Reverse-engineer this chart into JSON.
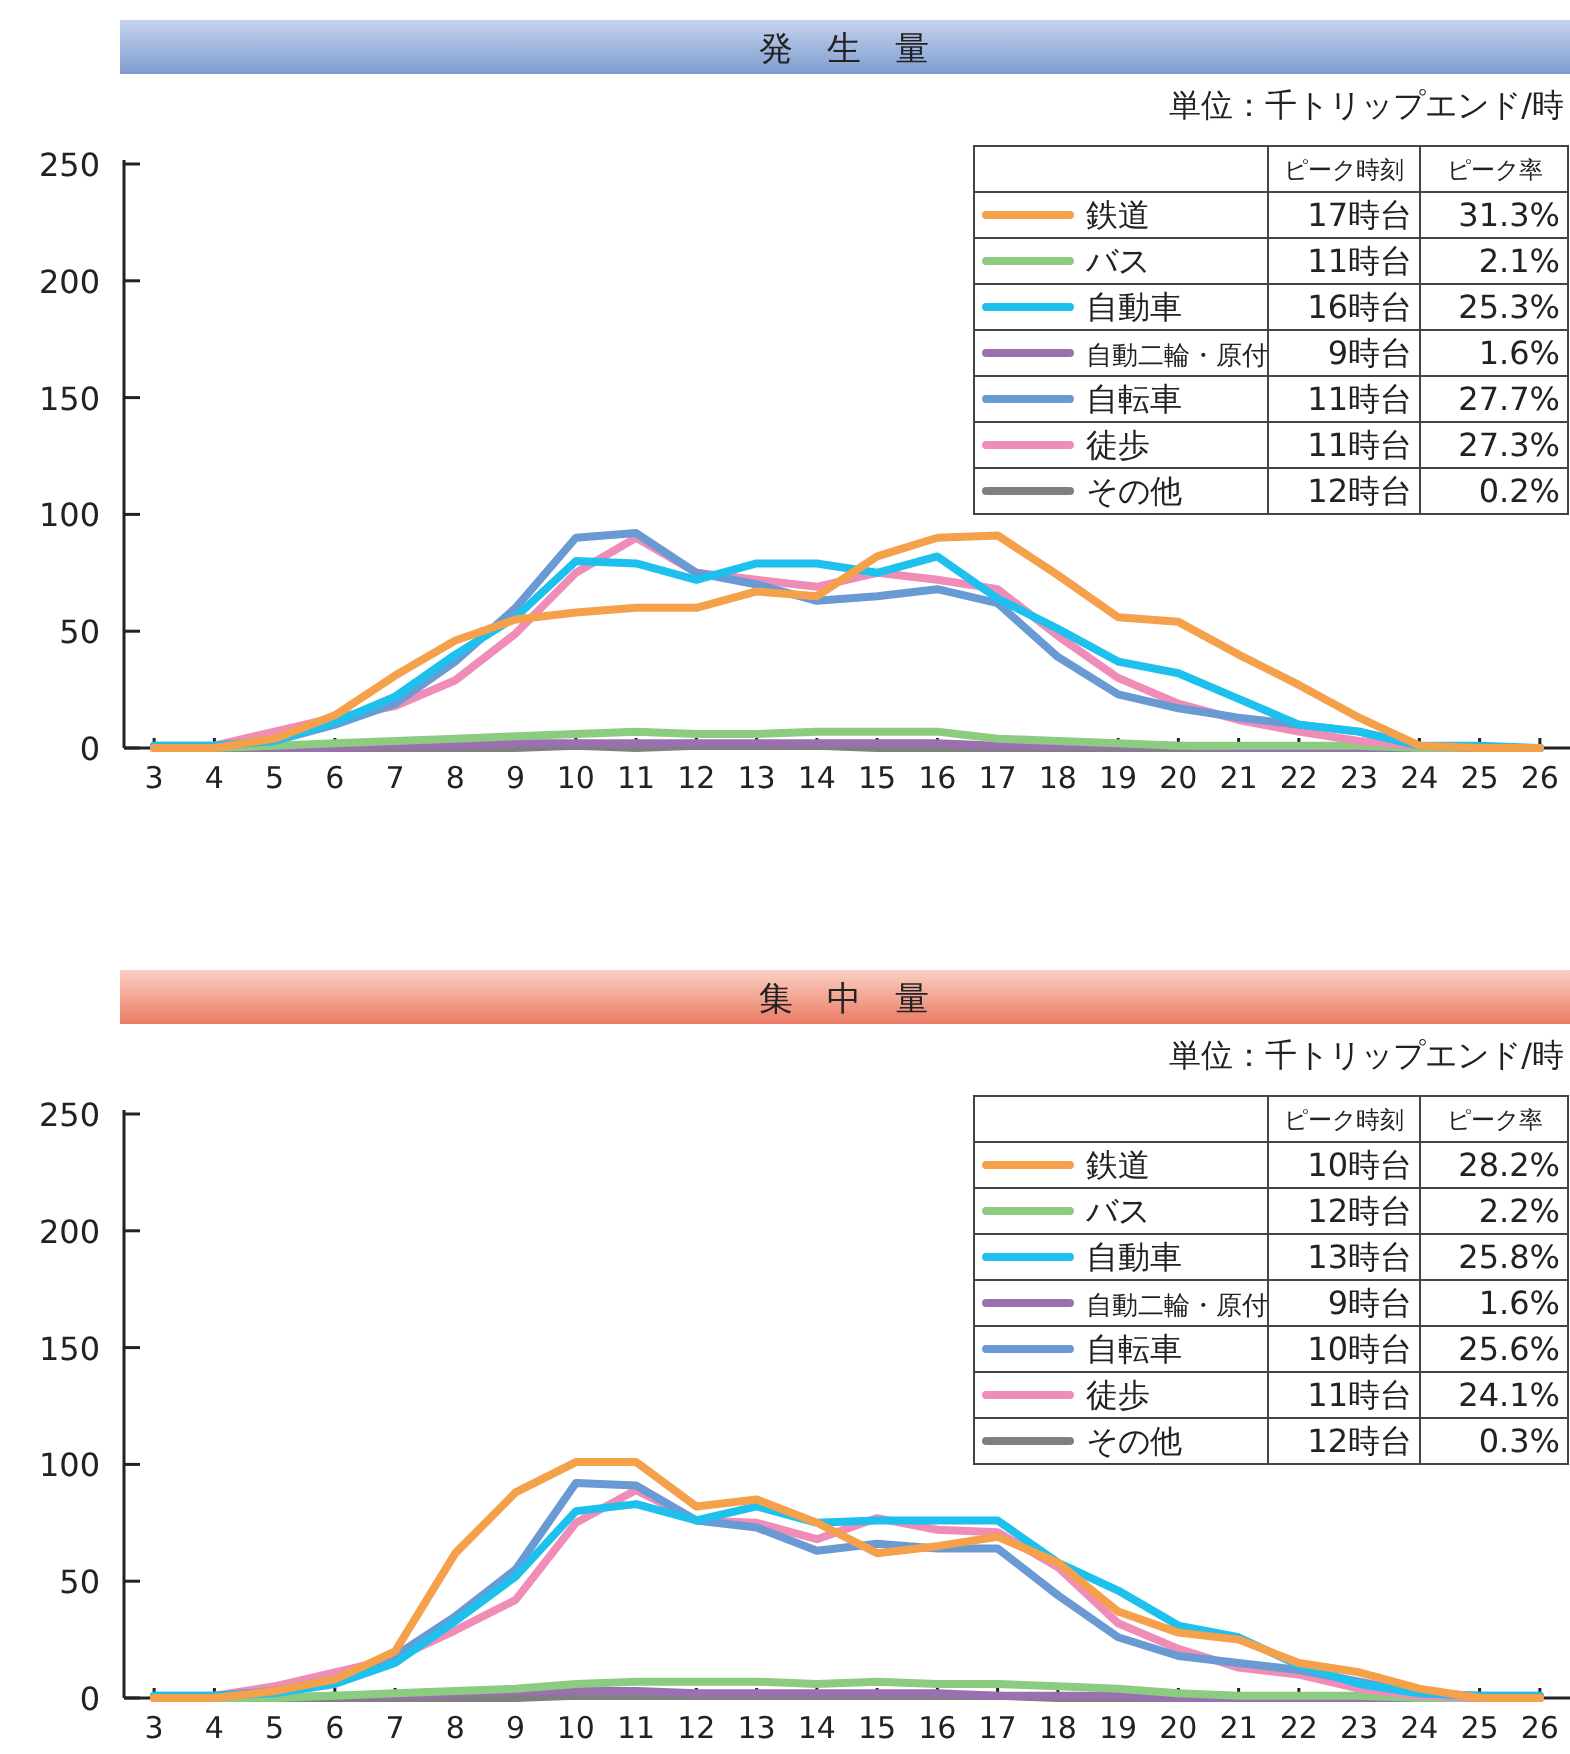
{
  "chart_data": [
    {
      "type": "line",
      "title": "発　生　量",
      "subtitle": "単位：千トリップエンド/時",
      "x": [
        3,
        4,
        5,
        6,
        7,
        8,
        9,
        10,
        11,
        12,
        13,
        14,
        15,
        16,
        17,
        18,
        19,
        20,
        21,
        22,
        23,
        24,
        25,
        26
      ],
      "xlim": [
        2.5,
        26.5
      ],
      "xticks": [
        3,
        4,
        5,
        6,
        7,
        8,
        9,
        10,
        11,
        12,
        13,
        14,
        15,
        16,
        17,
        18,
        19,
        20,
        21,
        22,
        23,
        24,
        25,
        26
      ],
      "ylim": [
        0,
        250
      ],
      "yticks": [
        0,
        50,
        100,
        150,
        200,
        250
      ],
      "grid": false,
      "legend": "top right",
      "marker": "none",
      "line_style": "solid",
      "annotations": [
        "ピーク時刻",
        "ピーク率",
        "17時台",
        "31.3%",
        "11時台",
        "2.1%",
        "16時台",
        "25.3%",
        "9時台",
        "1.6%",
        "11時台",
        "27.7%",
        "11時台",
        "27.3%",
        "12時台",
        "0.2%"
      ],
      "series": [
        {
          "name": "鉄道",
          "color": "#f5a04a",
          "values": [
            0,
            0,
            4,
            14,
            31,
            46,
            55,
            58,
            60,
            60,
            67,
            65,
            82,
            90,
            91,
            74,
            56,
            54,
            40,
            27,
            13,
            1,
            0,
            0
          ]
        },
        {
          "name": "バス",
          "color": "#8ccc80",
          "values": [
            0,
            0,
            1,
            2,
            3,
            4,
            5,
            6,
            7,
            6,
            6,
            7,
            7,
            7,
            4,
            3,
            2,
            1,
            1,
            1,
            1,
            0,
            0,
            0
          ]
        },
        {
          "name": "自動車",
          "color": "#1ec0ee",
          "values": [
            1,
            1,
            3,
            11,
            22,
            40,
            56,
            80,
            79,
            72,
            79,
            79,
            75,
            82,
            64,
            51,
            37,
            32,
            21,
            10,
            7,
            1,
            1,
            0
          ]
        },
        {
          "name": "自動二輪・原付",
          "color": "#9b70b0",
          "values": [
            0,
            0,
            0,
            0,
            1,
            1,
            2,
            2,
            2,
            2,
            2,
            2,
            2,
            2,
            1,
            1,
            1,
            1,
            0,
            0,
            0,
            0,
            0,
            0
          ]
        },
        {
          "name": "自転車",
          "color": "#6a9ad4",
          "values": [
            1,
            1,
            3,
            10,
            19,
            37,
            60,
            90,
            92,
            75,
            70,
            63,
            65,
            68,
            62,
            39,
            23,
            17,
            13,
            10,
            7,
            1,
            0,
            0
          ]
        },
        {
          "name": "徒歩",
          "color": "#f08cb8",
          "values": [
            0,
            1,
            7,
            13,
            18,
            29,
            49,
            75,
            90,
            75,
            72,
            69,
            75,
            72,
            68,
            48,
            30,
            19,
            12,
            7,
            3,
            1,
            0,
            0
          ]
        },
        {
          "name": "その他",
          "color": "#808080",
          "values": [
            0,
            0,
            0,
            0,
            0,
            0,
            0,
            1,
            0,
            1,
            1,
            1,
            0,
            0,
            0,
            0,
            0,
            0,
            0,
            0,
            0,
            0,
            0,
            0
          ]
        }
      ]
    },
    {
      "type": "line",
      "title": "集　中　量",
      "subtitle": "単位：千トリップエンド/時",
      "x": [
        3,
        4,
        5,
        6,
        7,
        8,
        9,
        10,
        11,
        12,
        13,
        14,
        15,
        16,
        17,
        18,
        19,
        20,
        21,
        22,
        23,
        24,
        25,
        26
      ],
      "xlim": [
        2.5,
        26.5
      ],
      "xticks": [
        3,
        4,
        5,
        6,
        7,
        8,
        9,
        10,
        11,
        12,
        13,
        14,
        15,
        16,
        17,
        18,
        19,
        20,
        21,
        22,
        23,
        24,
        25,
        26
      ],
      "ylim": [
        0,
        250
      ],
      "yticks": [
        0,
        50,
        100,
        150,
        200,
        250
      ],
      "grid": false,
      "legend": "top right",
      "marker": "none",
      "line_style": "solid",
      "annotations": [
        "ピーク時刻",
        "ピーク率",
        "10時台",
        "28.2%",
        "12時台",
        "2.2%",
        "13時台",
        "25.8%",
        "9時台",
        "1.6%",
        "10時台",
        "25.6%",
        "11時台",
        "24.1%",
        "12時台",
        "0.3%"
      ],
      "series": [
        {
          "name": "鉄道",
          "color": "#f5a04a",
          "values": [
            0,
            0,
            3,
            8,
            20,
            62,
            88,
            101,
            101,
            82,
            85,
            75,
            62,
            65,
            69,
            58,
            37,
            28,
            25,
            15,
            11,
            4,
            0,
            0
          ]
        },
        {
          "name": "バス",
          "color": "#8ccc80",
          "values": [
            0,
            0,
            0,
            1,
            2,
            3,
            4,
            6,
            7,
            7,
            7,
            6,
            7,
            6,
            6,
            5,
            4,
            2,
            1,
            1,
            1,
            0,
            0,
            0
          ]
        },
        {
          "name": "自動車",
          "color": "#1ec0ee",
          "values": [
            1,
            1,
            2,
            6,
            15,
            33,
            52,
            80,
            83,
            76,
            82,
            75,
            76,
            76,
            76,
            58,
            46,
            31,
            26,
            14,
            6,
            2,
            1,
            1
          ]
        },
        {
          "name": "自動二輪・原付",
          "color": "#9b70b0",
          "values": [
            0,
            0,
            0,
            1,
            1,
            2,
            3,
            3,
            3,
            2,
            2,
            2,
            2,
            2,
            1,
            1,
            1,
            0,
            0,
            0,
            0,
            0,
            0,
            0
          ]
        },
        {
          "name": "自転車",
          "color": "#6a9ad4",
          "values": [
            1,
            1,
            3,
            8,
            18,
            35,
            55,
            92,
            91,
            76,
            73,
            63,
            66,
            64,
            64,
            44,
            26,
            18,
            15,
            12,
            7,
            2,
            1,
            1
          ]
        },
        {
          "name": "徒歩",
          "color": "#f08cb8",
          "values": [
            0,
            1,
            5,
            11,
            17,
            29,
            42,
            75,
            89,
            76,
            75,
            68,
            77,
            72,
            71,
            56,
            32,
            21,
            13,
            10,
            4,
            1,
            0,
            0
          ]
        },
        {
          "name": "その他",
          "color": "#808080",
          "values": [
            0,
            0,
            0,
            0,
            0,
            0,
            0,
            1,
            1,
            1,
            1,
            1,
            1,
            1,
            1,
            0,
            0,
            0,
            0,
            0,
            0,
            0,
            0,
            0
          ]
        }
      ]
    }
  ]
}
